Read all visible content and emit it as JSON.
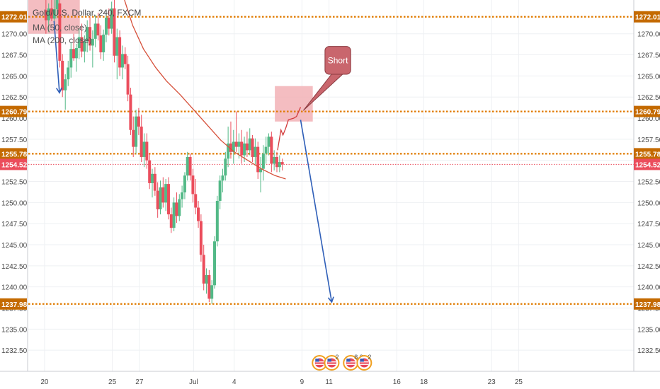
{
  "legend": {
    "symbol": "Gold/U.S. Dollar, 240, FXCM",
    "ma50": "MA (50, close)",
    "ma200": "MA (200, close)"
  },
  "colors": {
    "up": "#53b987",
    "down": "#eb4d5c",
    "level": "#e07b00",
    "level_tag": "#c46a00",
    "last_price": "#eb4d5c",
    "ma_line": "#d6503a",
    "arrow": "#2f5fb8",
    "zone": "#f2b2b6",
    "callout_fill": "#c9666d",
    "grid": "#eef0f3",
    "axis_text": "#4a4a4a"
  },
  "chart_data": {
    "type": "candlestick",
    "y_axis": {
      "min": 1230.0,
      "max": 1274.0,
      "ticks": [
        1232.5,
        1235.0,
        1237.5,
        1240.0,
        1242.5,
        1245.0,
        1247.5,
        1250.0,
        1252.5,
        1255.0,
        1257.5,
        1260.0,
        1262.5,
        1265.0,
        1267.5,
        1270.0
      ],
      "tick_labels": [
        "1232.50",
        "1235.00",
        "1237.50",
        "1240.00",
        "1242.50",
        "1245.00",
        "1247.50",
        "1250.00",
        "1252.50",
        "1255.00",
        "1257.50",
        "1260.00",
        "1262.50",
        "1265.00",
        "1267.50",
        "1270.00"
      ]
    },
    "x_axis": {
      "unit": "day index (Jun 20 = 0)",
      "min": -1.2,
      "max": 43.5,
      "ticks": [
        {
          "x": 0,
          "label": "20"
        },
        {
          "x": 5,
          "label": "25"
        },
        {
          "x": 7,
          "label": "27"
        },
        {
          "x": 11,
          "label": "Jul"
        },
        {
          "x": 14,
          "label": "4"
        },
        {
          "x": 19,
          "label": "9"
        },
        {
          "x": 21,
          "label": "11"
        },
        {
          "x": 26,
          "label": "16"
        },
        {
          "x": 28,
          "label": "18"
        },
        {
          "x": 33,
          "label": "23"
        },
        {
          "x": 35,
          "label": "25"
        }
      ]
    },
    "levels": [
      {
        "value": 1272.01,
        "label": "1272.01"
      },
      {
        "value": 1260.79,
        "label": "1260.79"
      },
      {
        "value": 1255.78,
        "label": "1255.78"
      },
      {
        "value": 1237.98,
        "label": "1237.98"
      }
    ],
    "last_price": {
      "value": 1254.52,
      "label": "1254.52"
    },
    "candles": [
      {
        "x": 0.1,
        "o": 1272.8,
        "h": 1274.5,
        "l": 1270.0,
        "c": 1271.6
      },
      {
        "x": 0.3,
        "o": 1271.6,
        "h": 1273.6,
        "l": 1270.2,
        "c": 1273.0
      },
      {
        "x": 0.52,
        "o": 1273.0,
        "h": 1274.5,
        "l": 1271.5,
        "c": 1271.8
      },
      {
        "x": 0.72,
        "o": 1271.8,
        "h": 1274.0,
        "l": 1270.6,
        "c": 1272.9
      },
      {
        "x": 0.92,
        "o": 1272.9,
        "h": 1274.8,
        "l": 1271.8,
        "c": 1274.0
      },
      {
        "x": 1.12,
        "o": 1273.6,
        "h": 1274.3,
        "l": 1266.0,
        "c": 1266.8
      },
      {
        "x": 1.32,
        "o": 1266.8,
        "h": 1267.6,
        "l": 1262.5,
        "c": 1263.3
      },
      {
        "x": 1.53,
        "o": 1263.3,
        "h": 1265.2,
        "l": 1261.0,
        "c": 1264.6
      },
      {
        "x": 1.74,
        "o": 1264.6,
        "h": 1266.8,
        "l": 1263.8,
        "c": 1266.0
      },
      {
        "x": 1.95,
        "o": 1266.0,
        "h": 1269.0,
        "l": 1264.8,
        "c": 1268.2
      },
      {
        "x": 2.15,
        "o": 1268.2,
        "h": 1270.0,
        "l": 1266.8,
        "c": 1267.1
      },
      {
        "x": 2.35,
        "o": 1267.1,
        "h": 1268.8,
        "l": 1265.5,
        "c": 1268.3
      },
      {
        "x": 2.55,
        "o": 1268.3,
        "h": 1270.6,
        "l": 1267.0,
        "c": 1269.6
      },
      {
        "x": 2.75,
        "o": 1269.6,
        "h": 1271.2,
        "l": 1267.2,
        "c": 1267.9
      },
      {
        "x": 2.95,
        "o": 1267.9,
        "h": 1269.8,
        "l": 1266.6,
        "c": 1269.1
      },
      {
        "x": 3.15,
        "o": 1269.1,
        "h": 1271.6,
        "l": 1267.8,
        "c": 1270.8
      },
      {
        "x": 3.35,
        "o": 1270.8,
        "h": 1272.0,
        "l": 1268.0,
        "c": 1268.6
      },
      {
        "x": 3.55,
        "o": 1268.6,
        "h": 1270.4,
        "l": 1266.0,
        "c": 1269.4
      },
      {
        "x": 3.75,
        "o": 1269.4,
        "h": 1272.2,
        "l": 1268.4,
        "c": 1271.2
      },
      {
        "x": 3.95,
        "o": 1271.2,
        "h": 1272.5,
        "l": 1269.2,
        "c": 1269.8
      },
      {
        "x": 4.15,
        "o": 1269.8,
        "h": 1271.0,
        "l": 1267.0,
        "c": 1267.8
      },
      {
        "x": 4.35,
        "o": 1267.8,
        "h": 1270.5,
        "l": 1266.8,
        "c": 1269.9
      },
      {
        "x": 4.55,
        "o": 1269.9,
        "h": 1272.8,
        "l": 1269.0,
        "c": 1271.9
      },
      {
        "x": 4.75,
        "o": 1271.9,
        "h": 1273.0,
        "l": 1269.8,
        "c": 1270.6
      },
      {
        "x": 4.95,
        "o": 1270.6,
        "h": 1273.8,
        "l": 1270.0,
        "c": 1273.0
      },
      {
        "x": 5.15,
        "o": 1273.0,
        "h": 1274.0,
        "l": 1266.6,
        "c": 1267.4
      },
      {
        "x": 5.35,
        "o": 1267.4,
        "h": 1270.6,
        "l": 1264.6,
        "c": 1269.6
      },
      {
        "x": 5.55,
        "o": 1269.6,
        "h": 1270.4,
        "l": 1265.0,
        "c": 1266.0
      },
      {
        "x": 5.75,
        "o": 1266.0,
        "h": 1268.6,
        "l": 1264.6,
        "c": 1267.6
      },
      {
        "x": 5.95,
        "o": 1267.6,
        "h": 1268.4,
        "l": 1265.8,
        "c": 1266.4
      },
      {
        "x": 6.15,
        "o": 1266.4,
        "h": 1267.4,
        "l": 1262.0,
        "c": 1262.8
      },
      {
        "x": 6.35,
        "o": 1262.8,
        "h": 1263.6,
        "l": 1258.0,
        "c": 1258.6
      },
      {
        "x": 6.55,
        "o": 1258.6,
        "h": 1260.2,
        "l": 1255.4,
        "c": 1256.6
      },
      {
        "x": 6.75,
        "o": 1256.6,
        "h": 1261.0,
        "l": 1255.8,
        "c": 1260.2
      },
      {
        "x": 6.95,
        "o": 1260.2,
        "h": 1261.2,
        "l": 1258.0,
        "c": 1259.0
      },
      {
        "x": 7.15,
        "o": 1259.0,
        "h": 1260.4,
        "l": 1254.8,
        "c": 1255.4
      },
      {
        "x": 7.35,
        "o": 1255.4,
        "h": 1258.2,
        "l": 1254.2,
        "c": 1257.2
      },
      {
        "x": 7.55,
        "o": 1257.2,
        "h": 1258.2,
        "l": 1254.0,
        "c": 1255.0
      },
      {
        "x": 7.75,
        "o": 1255.0,
        "h": 1255.8,
        "l": 1251.6,
        "c": 1252.3
      },
      {
        "x": 7.95,
        "o": 1252.3,
        "h": 1254.0,
        "l": 1250.6,
        "c": 1253.4
      },
      {
        "x": 8.15,
        "o": 1253.4,
        "h": 1254.2,
        "l": 1250.8,
        "c": 1251.4
      },
      {
        "x": 8.35,
        "o": 1251.4,
        "h": 1252.4,
        "l": 1248.2,
        "c": 1249.2
      },
      {
        "x": 8.55,
        "o": 1249.2,
        "h": 1252.6,
        "l": 1248.6,
        "c": 1251.8
      },
      {
        "x": 8.75,
        "o": 1251.8,
        "h": 1253.0,
        "l": 1249.4,
        "c": 1250.0
      },
      {
        "x": 8.95,
        "o": 1250.0,
        "h": 1252.8,
        "l": 1249.0,
        "c": 1252.2
      },
      {
        "x": 9.15,
        "o": 1252.2,
        "h": 1253.0,
        "l": 1248.0,
        "c": 1248.6
      },
      {
        "x": 9.35,
        "o": 1248.6,
        "h": 1249.4,
        "l": 1246.4,
        "c": 1247.0
      },
      {
        "x": 9.55,
        "o": 1247.0,
        "h": 1250.6,
        "l": 1246.6,
        "c": 1250.0
      },
      {
        "x": 9.75,
        "o": 1250.0,
        "h": 1251.2,
        "l": 1247.6,
        "c": 1248.4
      },
      {
        "x": 9.95,
        "o": 1248.4,
        "h": 1251.0,
        "l": 1247.8,
        "c": 1250.4
      },
      {
        "x": 10.15,
        "o": 1250.4,
        "h": 1252.0,
        "l": 1249.4,
        "c": 1251.2
      },
      {
        "x": 10.35,
        "o": 1251.2,
        "h": 1253.6,
        "l": 1250.4,
        "c": 1253.2
      },
      {
        "x": 10.55,
        "o": 1253.2,
        "h": 1256.0,
        "l": 1252.6,
        "c": 1255.4
      },
      {
        "x": 10.75,
        "o": 1255.4,
        "h": 1255.8,
        "l": 1252.6,
        "c": 1253.2
      },
      {
        "x": 10.95,
        "o": 1253.2,
        "h": 1254.0,
        "l": 1250.0,
        "c": 1251.0
      },
      {
        "x": 11.15,
        "o": 1251.0,
        "h": 1252.8,
        "l": 1248.6,
        "c": 1249.4
      },
      {
        "x": 11.35,
        "o": 1249.4,
        "h": 1250.2,
        "l": 1247.0,
        "c": 1247.8
      },
      {
        "x": 11.55,
        "o": 1247.8,
        "h": 1248.6,
        "l": 1243.0,
        "c": 1243.8
      },
      {
        "x": 11.75,
        "o": 1243.8,
        "h": 1245.0,
        "l": 1239.6,
        "c": 1240.4
      },
      {
        "x": 11.95,
        "o": 1240.4,
        "h": 1242.2,
        "l": 1239.2,
        "c": 1241.4
      },
      {
        "x": 12.15,
        "o": 1241.4,
        "h": 1242.0,
        "l": 1238.2,
        "c": 1238.6
      },
      {
        "x": 12.35,
        "o": 1238.6,
        "h": 1240.8,
        "l": 1238.0,
        "c": 1240.2
      },
      {
        "x": 12.55,
        "o": 1240.2,
        "h": 1246.0,
        "l": 1239.8,
        "c": 1245.4
      },
      {
        "x": 12.75,
        "o": 1245.4,
        "h": 1250.8,
        "l": 1244.8,
        "c": 1250.2
      },
      {
        "x": 12.95,
        "o": 1250.2,
        "h": 1253.2,
        "l": 1249.2,
        "c": 1252.6
      },
      {
        "x": 13.15,
        "o": 1252.6,
        "h": 1254.0,
        "l": 1251.2,
        "c": 1253.2
      },
      {
        "x": 13.35,
        "o": 1253.2,
        "h": 1256.0,
        "l": 1252.6,
        "c": 1255.2
      },
      {
        "x": 13.55,
        "o": 1255.2,
        "h": 1259.0,
        "l": 1254.2,
        "c": 1257.0
      },
      {
        "x": 13.75,
        "o": 1257.0,
        "h": 1259.6,
        "l": 1255.2,
        "c": 1256.0
      },
      {
        "x": 13.95,
        "o": 1256.0,
        "h": 1258.6,
        "l": 1254.6,
        "c": 1257.2
      },
      {
        "x": 14.15,
        "o": 1257.2,
        "h": 1260.8,
        "l": 1256.0,
        "c": 1256.6
      },
      {
        "x": 14.35,
        "o": 1256.6,
        "h": 1258.2,
        "l": 1255.2,
        "c": 1257.2
      },
      {
        "x": 14.55,
        "o": 1257.2,
        "h": 1258.6,
        "l": 1254.6,
        "c": 1255.6
      },
      {
        "x": 14.75,
        "o": 1255.6,
        "h": 1257.8,
        "l": 1254.8,
        "c": 1257.0
      },
      {
        "x": 14.95,
        "o": 1257.0,
        "h": 1258.4,
        "l": 1255.4,
        "c": 1256.2
      },
      {
        "x": 15.15,
        "o": 1256.2,
        "h": 1258.8,
        "l": 1255.6,
        "c": 1257.6
      },
      {
        "x": 15.35,
        "o": 1257.6,
        "h": 1258.0,
        "l": 1254.8,
        "c": 1255.4
      },
      {
        "x": 15.55,
        "o": 1255.4,
        "h": 1257.6,
        "l": 1254.4,
        "c": 1256.6
      },
      {
        "x": 15.75,
        "o": 1256.6,
        "h": 1257.2,
        "l": 1252.8,
        "c": 1253.6
      },
      {
        "x": 15.95,
        "o": 1253.6,
        "h": 1255.4,
        "l": 1251.2,
        "c": 1254.0
      },
      {
        "x": 16.15,
        "o": 1254.0,
        "h": 1256.8,
        "l": 1252.6,
        "c": 1255.8
      },
      {
        "x": 16.35,
        "o": 1255.8,
        "h": 1257.8,
        "l": 1254.6,
        "c": 1256.6
      },
      {
        "x": 16.55,
        "o": 1256.6,
        "h": 1258.2,
        "l": 1255.6,
        "c": 1257.8
      },
      {
        "x": 16.75,
        "o": 1257.8,
        "h": 1258.4,
        "l": 1253.6,
        "c": 1254.6
      },
      {
        "x": 16.95,
        "o": 1254.6,
        "h": 1256.2,
        "l": 1253.8,
        "c": 1255.4
      },
      {
        "x": 17.15,
        "o": 1255.4,
        "h": 1256.0,
        "l": 1253.6,
        "c": 1254.2
      },
      {
        "x": 17.35,
        "o": 1254.2,
        "h": 1255.6,
        "l": 1253.6,
        "c": 1254.8
      },
      {
        "x": 17.55,
        "o": 1254.8,
        "h": 1255.2,
        "l": 1253.8,
        "c": 1254.52
      }
    ],
    "ma50": [
      {
        "x": 5.9,
        "y": 1274.0
      },
      {
        "x": 6.5,
        "y": 1271.0
      },
      {
        "x": 7.3,
        "y": 1268.2
      },
      {
        "x": 8.2,
        "y": 1266.0
      },
      {
        "x": 9.0,
        "y": 1264.4
      },
      {
        "x": 10.0,
        "y": 1262.8
      },
      {
        "x": 11.0,
        "y": 1261.0
      },
      {
        "x": 12.0,
        "y": 1259.2
      },
      {
        "x": 13.0,
        "y": 1257.4
      },
      {
        "x": 14.0,
        "y": 1256.0
      },
      {
        "x": 15.0,
        "y": 1255.0
      },
      {
        "x": 16.0,
        "y": 1254.0
      },
      {
        "x": 17.0,
        "y": 1253.2
      },
      {
        "x": 17.8,
        "y": 1252.8
      }
    ],
    "projection": [
      {
        "x": 17.2,
        "y": 1256.2
      },
      {
        "x": 17.45,
        "y": 1258.6
      },
      {
        "x": 17.6,
        "y": 1258.0
      },
      {
        "x": 17.8,
        "y": 1258.8
      },
      {
        "x": 18.0,
        "y": 1259.8
      },
      {
        "x": 18.4,
        "y": 1260.0
      },
      {
        "x": 18.6,
        "y": 1260.2
      },
      {
        "x": 18.9,
        "y": 1261.3
      }
    ],
    "zones": [
      {
        "x0": -1.2,
        "x1": 2.6,
        "y0": 1274.5,
        "y1": 1270.0
      },
      {
        "x0": 17.0,
        "x1": 19.8,
        "y0": 1263.8,
        "y1": 1259.6
      }
    ],
    "arrows": [
      {
        "x0": 0.7,
        "y0": 1271.5,
        "x1": 1.1,
        "y1": 1263.0
      },
      {
        "x0": 18.9,
        "y0": 1259.8,
        "x1": 21.2,
        "y1": 1238.2
      }
    ],
    "callout": {
      "text": "Short",
      "x0": 20.7,
      "x1": 22.6,
      "y0": 1268.5,
      "y1": 1265.2,
      "tail_x": 19.1,
      "tail_y": 1260.9
    },
    "event_badges": [
      {
        "x": 20.3,
        "count": ""
      },
      {
        "x": 21.2,
        "count": "2"
      },
      {
        "x": 22.6,
        "count": "8 3"
      },
      {
        "x": 23.6,
        "count": "2"
      }
    ]
  }
}
